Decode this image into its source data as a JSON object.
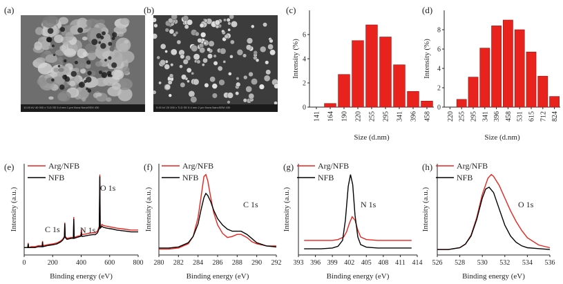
{
  "panel_labels": [
    "(a)",
    "(b)",
    "(c)",
    "(d)",
    "(e)",
    "(f)",
    "(g)",
    "(h)"
  ],
  "sem_images": [
    {
      "label": "(a)",
      "bar_text": "10.00 kV   40 000 x   TLD   SE   5.4 mm          1 μm          Nova NanoSEM 430"
    },
    {
      "label": "(b)",
      "bar_text": "5.00 kV   20 000 x   TLD   SE   5.4 mm          2 μm          Nova NanoSEM 430"
    }
  ],
  "colors": {
    "bar_fill": "#e8231e",
    "bar_stroke": "#9a1010",
    "arg_nfb": "#e8231e",
    "nfb": "#000000"
  },
  "chart_data": [
    {
      "panel": "(c)",
      "type": "bar",
      "categories": [
        "141",
        "164",
        "190",
        "220",
        "255",
        "295",
        "341",
        "396",
        "458"
      ],
      "values": [
        0,
        0.3,
        2.7,
        5.5,
        6.8,
        5.8,
        3.5,
        1.3,
        0.5
      ],
      "xlabel": "Size (d.nm)",
      "ylabel": "Intensity (%)",
      "ylim": [
        0,
        8
      ],
      "yticks": [
        0,
        2,
        4,
        6
      ],
      "legend": "none",
      "grid": false
    },
    {
      "panel": "(d)",
      "type": "bar",
      "categories": [
        "220",
        "255",
        "295",
        "341",
        "396",
        "458",
        "531",
        "615",
        "712",
        "824"
      ],
      "values": [
        0,
        0.8,
        3.1,
        6.1,
        8.4,
        9.0,
        8.0,
        5.7,
        3.2,
        1.1
      ],
      "xlabel": "Size (d.nm)",
      "ylabel": "Intensity (%)",
      "ylim": [
        0,
        10
      ],
      "yticks": [
        0,
        2,
        4,
        6,
        8
      ],
      "legend": "none",
      "grid": false
    },
    {
      "panel": "(e)",
      "type": "line",
      "xlabel": "Binding energy (eV)",
      "ylabel": "Intensity (a.u.)",
      "xlim": [
        0,
        800
      ],
      "xticks": [
        0,
        200,
        400,
        600,
        800
      ],
      "annotations": [
        {
          "text": "O 1s",
          "x": 535
        },
        {
          "text": "C 1s",
          "x": 285
        },
        {
          "text": "N 1s",
          "x": 402
        }
      ],
      "legend": "top-left",
      "series": [
        {
          "name": "Arg/NFB",
          "color": "#e8231e",
          "x": [
            0,
            25,
            28,
            31,
            50,
            75,
            100,
            126,
            129,
            132,
            160,
            200,
            230,
            255,
            270,
            282,
            285,
            288,
            300,
            330,
            345,
            348,
            351,
            370,
            395,
            399,
            402,
            405,
            410,
            440,
            480,
            500,
            515,
            527,
            531,
            534,
            540,
            545,
            555,
            580,
            620,
            650,
            700,
            750,
            800
          ],
          "y": [
            5,
            5,
            10,
            5,
            6,
            6,
            7,
            7,
            12,
            7,
            8,
            9,
            10,
            12,
            14,
            17,
            32,
            17,
            15,
            16,
            16,
            38,
            16,
            17,
            18,
            20,
            25,
            19,
            19,
            20,
            21,
            21,
            23,
            28,
            84,
            28,
            28,
            30,
            29,
            28,
            27,
            26,
            25,
            24,
            24
          ]
        },
        {
          "name": "NFB",
          "color": "#000000",
          "x": [
            0,
            25,
            28,
            31,
            50,
            75,
            100,
            126,
            129,
            132,
            160,
            200,
            230,
            255,
            270,
            282,
            285,
            288,
            300,
            330,
            345,
            348,
            351,
            370,
            395,
            399,
            402,
            405,
            410,
            440,
            480,
            500,
            515,
            527,
            531,
            534,
            540,
            545,
            555,
            580,
            620,
            650,
            700,
            750,
            800
          ],
          "y": [
            5,
            5,
            9,
            5,
            5,
            5,
            6,
            6,
            11,
            6,
            7,
            8,
            9,
            11,
            13,
            16,
            31,
            16,
            14,
            15,
            15,
            36,
            15,
            16,
            17,
            18,
            21,
            17,
            17,
            18,
            19,
            19,
            21,
            26,
            82,
            26,
            27,
            28,
            27,
            26,
            25,
            24,
            23,
            22,
            22
          ]
        }
      ]
    },
    {
      "panel": "(f)",
      "type": "line",
      "xlabel": "Binding energy (eV)",
      "ylabel": "Intensity (a.u.)",
      "xlim": [
        280,
        292
      ],
      "xticks": [
        280,
        282,
        284,
        286,
        288,
        290,
        292
      ],
      "annotations": [
        {
          "text": "C 1s",
          "x": 289
        }
      ],
      "legend": "top-left",
      "series": [
        {
          "name": "Arg/NFB",
          "color": "#e8231e",
          "x": [
            280,
            281,
            282,
            283,
            283.5,
            284,
            284.3,
            284.6,
            284.8,
            285.0,
            285.3,
            285.6,
            286,
            286.5,
            287,
            287.5,
            288,
            288.4,
            289,
            289.5,
            290,
            291,
            292
          ],
          "y": [
            3,
            3,
            4,
            8,
            15,
            33,
            52,
            72,
            74,
            68,
            52,
            38,
            26,
            18,
            14,
            15,
            17,
            17,
            14,
            10,
            8,
            6,
            6
          ]
        },
        {
          "name": "NFB",
          "color": "#000000",
          "x": [
            280,
            281,
            282,
            283,
            283.5,
            284,
            284.3,
            284.6,
            284.8,
            285.0,
            285.3,
            285.6,
            286,
            286.5,
            287,
            287.5,
            288,
            288.4,
            289,
            289.5,
            290,
            291,
            292
          ],
          "y": [
            4,
            4,
            5,
            9,
            15,
            27,
            40,
            52,
            56,
            54,
            48,
            40,
            32,
            26,
            22,
            20,
            20,
            20,
            17,
            13,
            9,
            6,
            5
          ]
        }
      ]
    },
    {
      "panel": "(g)",
      "type": "line",
      "xlabel": "Binding energy (eV)",
      "ylabel": "Intensity (a.u.)",
      "xlim": [
        393,
        414
      ],
      "xticks": [
        393,
        396,
        399,
        402,
        405,
        408,
        411,
        414
      ],
      "annotations": [
        {
          "text": "N 1s",
          "x": 407.5
        }
      ],
      "legend": "top-left",
      "series": [
        {
          "name": "Arg/NFB",
          "color": "#e8231e",
          "x": [
            394,
            397,
            399,
            400,
            401,
            401.5,
            402,
            402.5,
            403,
            403.5,
            404,
            405,
            407,
            410,
            413
          ],
          "y": [
            14,
            14,
            14,
            15,
            18,
            24,
            34,
            42,
            38,
            26,
            18,
            15,
            14,
            14,
            14
          ]
        },
        {
          "name": "NFB",
          "color": "#000000",
          "x": [
            394,
            397,
            399,
            400,
            400.8,
            401.3,
            401.8,
            402.2,
            402.6,
            403,
            403.5,
            404,
            405,
            407,
            410,
            413
          ],
          "y": [
            4,
            4,
            5,
            7,
            14,
            38,
            78,
            92,
            80,
            44,
            18,
            9,
            6,
            5,
            5,
            5
          ]
        }
      ]
    },
    {
      "panel": "(h)",
      "type": "line",
      "xlabel": "Binding energy (eV)",
      "ylabel": "Intensity (a.u.)",
      "xlim": [
        526,
        536
      ],
      "xticks": [
        526,
        528,
        530,
        532,
        534,
        536
      ],
      "annotations": [
        {
          "text": "O 1s",
          "x": 533.6
        }
      ],
      "legend": "top-left",
      "series": [
        {
          "name": "Arg/NFB",
          "color": "#e8231e",
          "x": [
            526,
            527,
            528,
            528.5,
            529,
            529.5,
            530,
            530.5,
            530.8,
            531,
            531.5,
            532,
            532.5,
            533,
            533.5,
            534,
            535,
            536
          ],
          "y": [
            3,
            3,
            5,
            9,
            19,
            38,
            64,
            82,
            86,
            84,
            74,
            60,
            46,
            34,
            24,
            16,
            8,
            5
          ]
        },
        {
          "name": "NFB",
          "color": "#000000",
          "x": [
            526,
            527,
            528,
            528.5,
            529,
            529.5,
            530,
            530.3,
            530.6,
            531,
            531.5,
            532,
            532.5,
            533,
            533.5,
            534,
            535,
            536
          ],
          "y": [
            3,
            3,
            5,
            9,
            18,
            36,
            60,
            70,
            72,
            66,
            48,
            30,
            18,
            11,
            7,
            5,
            4,
            3
          ]
        }
      ]
    }
  ]
}
